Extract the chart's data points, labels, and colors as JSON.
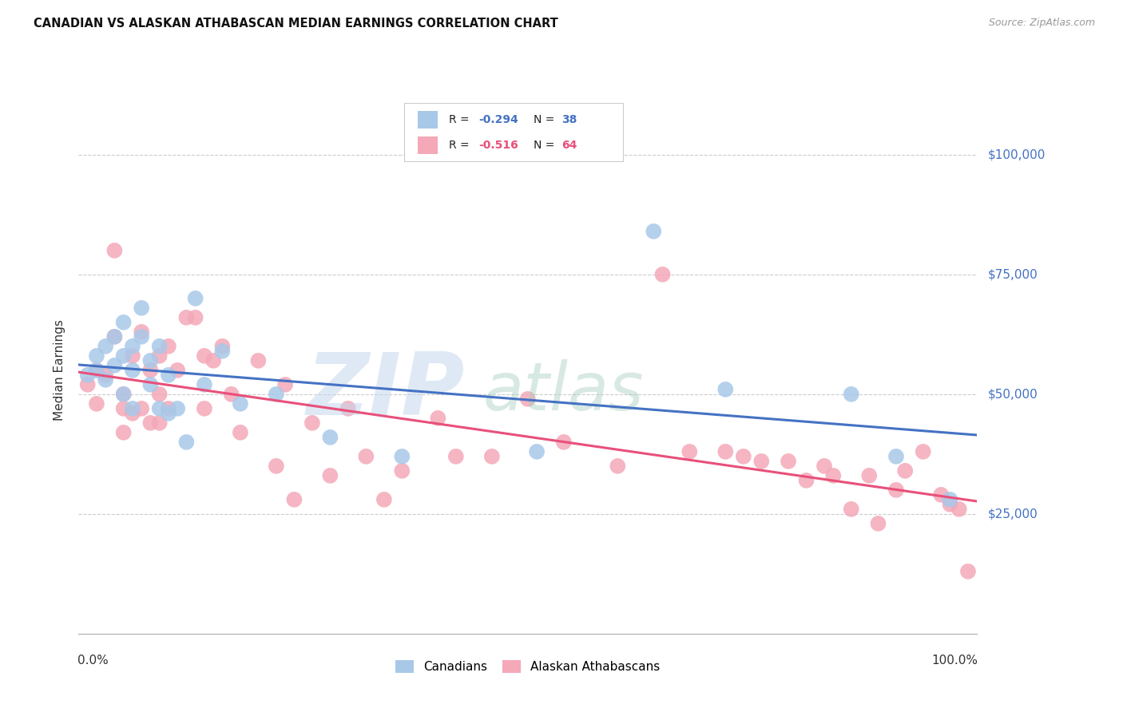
{
  "title": "CANADIAN VS ALASKAN ATHABASCAN MEDIAN EARNINGS CORRELATION CHART",
  "source": "Source: ZipAtlas.com",
  "ylabel": "Median Earnings",
  "blue_color": "#a8c8e8",
  "pink_color": "#f4a8b8",
  "line_blue": "#4472c4",
  "line_pink": "#e8507a",
  "blue_x": [
    0.01,
    0.02,
    0.02,
    0.03,
    0.03,
    0.04,
    0.04,
    0.05,
    0.05,
    0.05,
    0.06,
    0.06,
    0.06,
    0.07,
    0.07,
    0.08,
    0.08,
    0.09,
    0.09,
    0.1,
    0.1,
    0.11,
    0.12,
    0.13,
    0.14,
    0.16,
    0.18,
    0.22,
    0.28,
    0.36,
    0.51,
    0.64,
    0.72,
    0.86,
    0.91,
    0.97
  ],
  "blue_y": [
    54000,
    58000,
    55000,
    60000,
    53000,
    62000,
    56000,
    65000,
    58000,
    50000,
    60000,
    55000,
    47000,
    68000,
    62000,
    57000,
    52000,
    60000,
    47000,
    54000,
    46000,
    47000,
    40000,
    70000,
    52000,
    59000,
    48000,
    50000,
    41000,
    37000,
    38000,
    84000,
    51000,
    50000,
    37000,
    28000
  ],
  "pink_x": [
    0.01,
    0.02,
    0.02,
    0.03,
    0.04,
    0.04,
    0.05,
    0.05,
    0.05,
    0.06,
    0.06,
    0.07,
    0.07,
    0.08,
    0.08,
    0.09,
    0.09,
    0.09,
    0.1,
    0.1,
    0.11,
    0.12,
    0.13,
    0.14,
    0.14,
    0.15,
    0.16,
    0.17,
    0.18,
    0.2,
    0.22,
    0.23,
    0.24,
    0.26,
    0.28,
    0.3,
    0.32,
    0.34,
    0.36,
    0.4,
    0.42,
    0.46,
    0.5,
    0.54,
    0.6,
    0.65,
    0.68,
    0.72,
    0.74,
    0.76,
    0.79,
    0.81,
    0.83,
    0.84,
    0.86,
    0.88,
    0.89,
    0.91,
    0.92,
    0.94,
    0.96,
    0.97,
    0.98,
    0.99
  ],
  "pink_y": [
    52000,
    55000,
    48000,
    54000,
    80000,
    62000,
    50000,
    47000,
    42000,
    58000,
    46000,
    63000,
    47000,
    55000,
    44000,
    58000,
    50000,
    44000,
    60000,
    47000,
    55000,
    66000,
    66000,
    58000,
    47000,
    57000,
    60000,
    50000,
    42000,
    57000,
    35000,
    52000,
    28000,
    44000,
    33000,
    47000,
    37000,
    28000,
    34000,
    45000,
    37000,
    37000,
    49000,
    40000,
    35000,
    75000,
    38000,
    38000,
    37000,
    36000,
    36000,
    32000,
    35000,
    33000,
    26000,
    33000,
    23000,
    30000,
    34000,
    38000,
    29000,
    27000,
    26000,
    13000
  ]
}
